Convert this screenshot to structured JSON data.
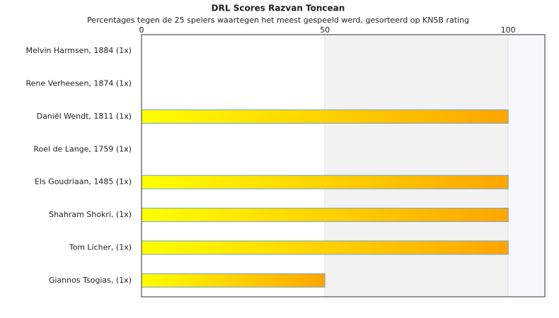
{
  "chart_data": {
    "type": "bar",
    "orientation": "horizontal",
    "title": "DRL Scores Razvan Toncean",
    "subtitle": "Percentages tegen de 25 spelers waartegen het meest gespeeld werd, gesorteerd op KNSB rating",
    "categories": [
      "Melvin Harmsen, 1884 (1x)",
      "Rene Verheesen, 1874 (1x)",
      "Daniël Wendt, 1811 (1x)",
      "Roel de Lange, 1759 (1x)",
      "Els Goudriaan, 1485 (1x)",
      "Shahram Shokri,  (1x)",
      "Tom Licher,  (1x)",
      "Giannos Tsogias,  (1x)"
    ],
    "values": [
      0,
      0,
      100,
      0,
      100,
      100,
      100,
      50
    ],
    "colors": [
      "#ffff00",
      "#ffa500"
    ],
    "xlim": [
      0,
      110
    ],
    "xticks": [
      0,
      50,
      100
    ]
  }
}
